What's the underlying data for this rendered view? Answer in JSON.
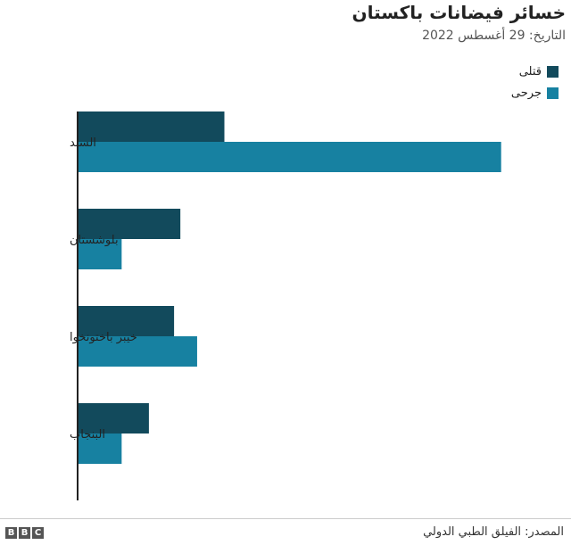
{
  "header": {
    "title": "خسائر فيضانات باكستان",
    "subtitle": "التاريخ: 29 أغسطس 2022"
  },
  "colors": {
    "dead": "#124a5c",
    "injured": "#1781a1",
    "axis": "#222222"
  },
  "chart_data": {
    "type": "bar",
    "orientation": "horizontal",
    "title": "خسائر فيضانات باكستان",
    "subtitle": "التاريخ: 29 أغسطس 2022",
    "categories": [
      "السند",
      "بلوشستان",
      "خيبر باختونخوا",
      "البنجاب"
    ],
    "series": [
      {
        "name": "قتلى",
        "values": [
          350,
          245,
          230,
          170
        ]
      },
      {
        "name": "جرحى",
        "values": [
          1010,
          105,
          285,
          105
        ]
      }
    ],
    "x_ticks": [
      0,
      100,
      200,
      300,
      400,
      500,
      600,
      700,
      800,
      900,
      1000,
      1100
    ],
    "xlim": [
      0,
      1100
    ],
    "grid": false,
    "legend_position": "top-right"
  },
  "footer": {
    "source": "المصدر: الفيلق الطبي الدولي",
    "logo_letters": [
      "B",
      "B",
      "C"
    ]
  }
}
